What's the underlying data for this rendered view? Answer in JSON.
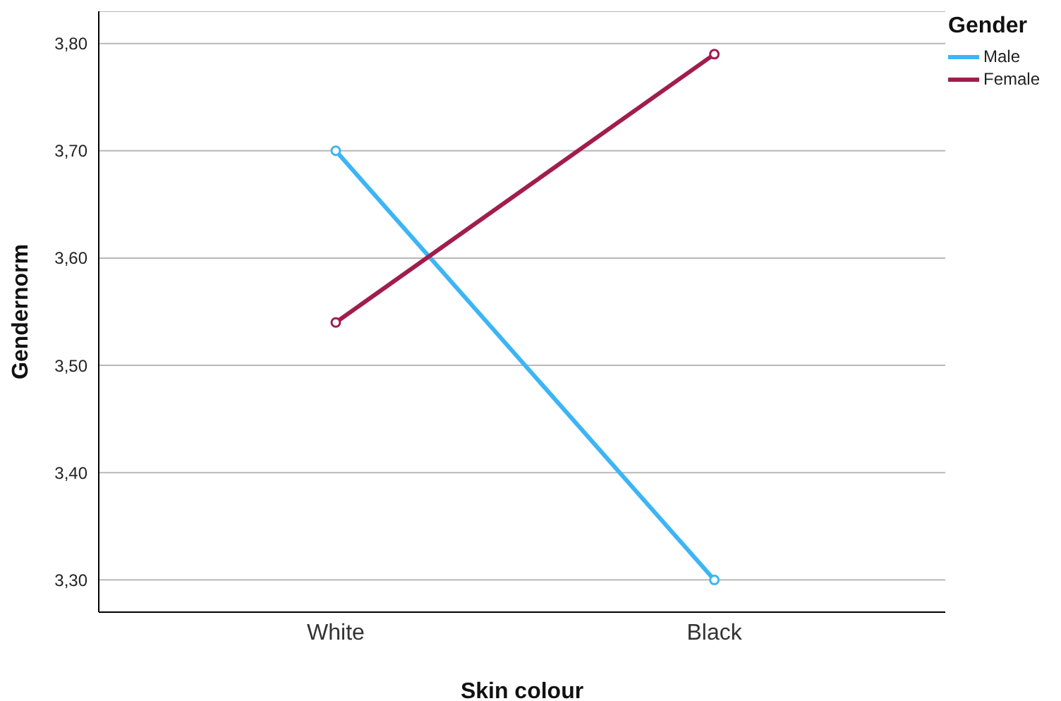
{
  "chart_data": {
    "type": "line",
    "xlabel": "Skin colour",
    "ylabel": "Gendernorm",
    "legend_title": "Gender",
    "categories": [
      "White",
      "Black"
    ],
    "series": [
      {
        "name": "Male",
        "color": "#3db5f5",
        "values": [
          3.7,
          3.3
        ]
      },
      {
        "name": "Female",
        "color": "#a11d4d",
        "values": [
          3.54,
          3.79
        ]
      }
    ],
    "ylim": [
      3.27,
      3.83
    ],
    "yticks": [
      {
        "value": 3.3,
        "label": "3,30"
      },
      {
        "value": 3.4,
        "label": "3,40"
      },
      {
        "value": 3.5,
        "label": "3,50"
      },
      {
        "value": 3.6,
        "label": "3,60"
      },
      {
        "value": 3.7,
        "label": "3,70"
      },
      {
        "value": 3.8,
        "label": "3,80"
      }
    ],
    "grid": "y",
    "legend": "top right",
    "marker": "circle",
    "line_style": "solid"
  }
}
